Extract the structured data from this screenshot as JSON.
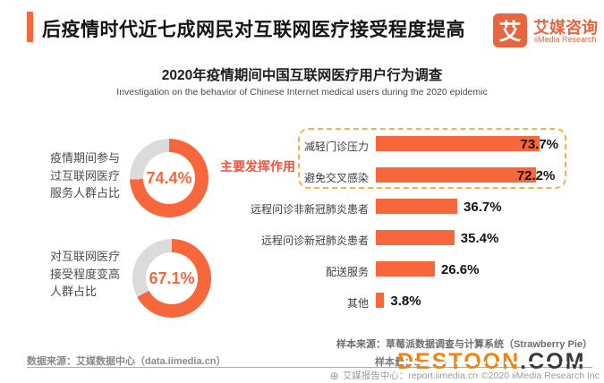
{
  "colors": {
    "accent_orange": "#F7673B",
    "logo_orange": "#E8663F",
    "donut_rest_gray": "#DBDBDB",
    "annotation_dash": "#FBB042",
    "annotation_text": "#F4503A",
    "watermark_orange": "#F2830D",
    "watermark_dark": "#3A3A3E"
  },
  "header": {
    "title": "后疫情时代近七成网民对互联网医疗接受程度提高",
    "logo": {
      "mark": "艾",
      "name_cn": "艾媒咨询",
      "name_en": "iiMedia Research"
    }
  },
  "subtitle": {
    "cn": "2020年疫情期间中国互联网医疗用户行为调查",
    "en": "Investigation on the behavior of Chinese Internet medical users during the 2020 epidemic"
  },
  "chart_data": [
    {
      "type": "donut",
      "label": "疫情期间参与过互联网医疗服务人群占比",
      "label_lines": [
        "疫情期间参与",
        "过互联网医疗",
        "服务人群占比"
      ],
      "value": 74.4,
      "value_label": "74.4%",
      "ring_color": "#F7673B",
      "rest_color": "#DBDBDB"
    },
    {
      "type": "donut",
      "label": "对互联网医疗接受程度变高人群占比",
      "label_lines": [
        "对互联网医疗",
        "接受程度变高",
        "人群占比"
      ],
      "value": 67.1,
      "value_label": "67.1%",
      "ring_color": "#F7673B",
      "rest_color": "#DBDBDB"
    },
    {
      "type": "bar",
      "orientation": "horizontal",
      "categories": [
        "减轻门诊压力",
        "避免交叉感染",
        "远程问诊非新冠肺炎患者",
        "远程问诊新冠肺炎患者",
        "配送服务",
        "其他"
      ],
      "values": [
        73.7,
        72.2,
        36.7,
        35.4,
        26.6,
        3.8
      ],
      "value_labels": [
        "73.7%",
        "72.2%",
        "36.7%",
        "35.4%",
        "26.6%",
        "3.8%"
      ],
      "xlim": [
        0,
        100
      ],
      "bar_color": "#F7673B",
      "annotation": {
        "label": "主要发挥作用",
        "box_categories": [
          "减轻门诊压力",
          "避免交叉感染"
        ]
      }
    }
  ],
  "sources": {
    "sample_source": "样本来源：草莓派数据调查与计算系统（Strawberry Pie）",
    "sample_line2_visible": "样本量：2",
    "data_source": "数据来源：艾媒数据中心（data.iimedia.cn）"
  },
  "watermark": {
    "part1": "DESTOON",
    "part2": ".COM"
  },
  "footer": {
    "globe_icon": "⊕",
    "report_center": "艾媒报告中心：report.iimedia.cn",
    "copyright": "©2020 iiMedia Research Inc"
  }
}
